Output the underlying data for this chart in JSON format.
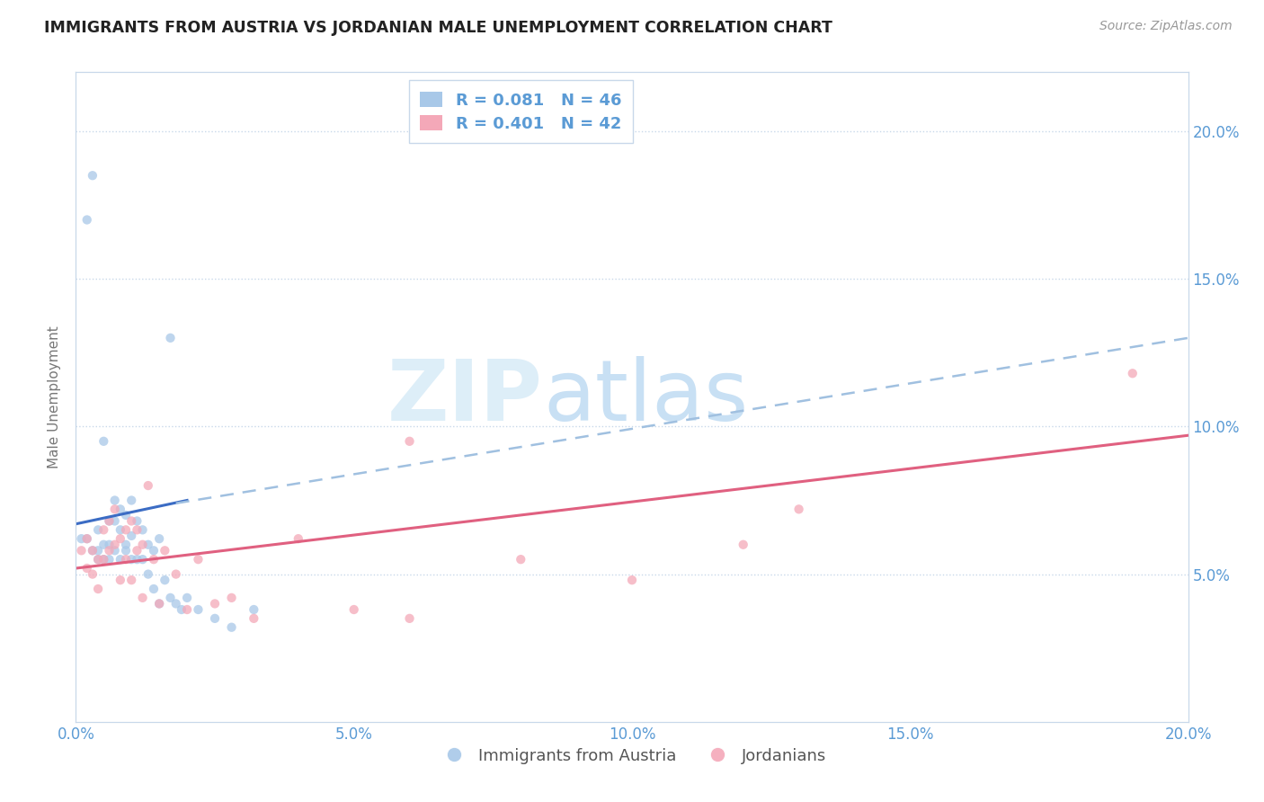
{
  "title": "IMMIGRANTS FROM AUSTRIA VS JORDANIAN MALE UNEMPLOYMENT CORRELATION CHART",
  "source": "Source: ZipAtlas.com",
  "ylabel": "Male Unemployment",
  "legend_labels": [
    "Immigrants from Austria",
    "Jordanians"
  ],
  "legend_r_n": [
    {
      "r": "0.081",
      "n": "46",
      "color": "#a8c8e8"
    },
    {
      "r": "0.401",
      "n": "42",
      "color": "#f4a8b8"
    }
  ],
  "xlim": [
    0.0,
    0.2
  ],
  "ylim": [
    0.0,
    0.22
  ],
  "yticks": [
    0.05,
    0.1,
    0.15,
    0.2
  ],
  "ytick_labels": [
    "5.0%",
    "10.0%",
    "15.0%",
    "20.0%"
  ],
  "xticks": [
    0.0,
    0.05,
    0.1,
    0.15,
    0.2
  ],
  "xtick_labels": [
    "0.0%",
    "5.0%",
    "10.0%",
    "15.0%",
    "20.0%"
  ],
  "tick_color": "#5b9bd5",
  "grid_color": "#c8d8ea",
  "background_color": "#ffffff",
  "watermark_zip": "ZIP",
  "watermark_atlas": "atlas",
  "austria_scatter": {
    "x": [
      0.001,
      0.002,
      0.002,
      0.003,
      0.003,
      0.004,
      0.004,
      0.004,
      0.005,
      0.005,
      0.005,
      0.006,
      0.006,
      0.006,
      0.007,
      0.007,
      0.007,
      0.008,
      0.008,
      0.008,
      0.009,
      0.009,
      0.009,
      0.01,
      0.01,
      0.01,
      0.011,
      0.011,
      0.012,
      0.012,
      0.013,
      0.013,
      0.014,
      0.014,
      0.015,
      0.015,
      0.016,
      0.017,
      0.018,
      0.019,
      0.02,
      0.022,
      0.025,
      0.028,
      0.032,
      0.017
    ],
    "y": [
      0.062,
      0.17,
      0.062,
      0.185,
      0.058,
      0.065,
      0.058,
      0.055,
      0.095,
      0.06,
      0.055,
      0.068,
      0.06,
      0.055,
      0.075,
      0.068,
      0.058,
      0.072,
      0.065,
      0.055,
      0.07,
      0.06,
      0.058,
      0.075,
      0.063,
      0.055,
      0.068,
      0.055,
      0.065,
      0.055,
      0.06,
      0.05,
      0.058,
      0.045,
      0.062,
      0.04,
      0.048,
      0.042,
      0.04,
      0.038,
      0.042,
      0.038,
      0.035,
      0.032,
      0.038,
      0.13
    ],
    "color": "#a8c8e8",
    "alpha": 0.75,
    "size": 55
  },
  "jordan_scatter": {
    "x": [
      0.001,
      0.002,
      0.002,
      0.003,
      0.003,
      0.004,
      0.004,
      0.005,
      0.005,
      0.006,
      0.006,
      0.007,
      0.007,
      0.008,
      0.008,
      0.009,
      0.009,
      0.01,
      0.01,
      0.011,
      0.011,
      0.012,
      0.012,
      0.013,
      0.014,
      0.015,
      0.016,
      0.018,
      0.02,
      0.022,
      0.025,
      0.028,
      0.032,
      0.04,
      0.05,
      0.06,
      0.08,
      0.1,
      0.12,
      0.19,
      0.06,
      0.13
    ],
    "y": [
      0.058,
      0.062,
      0.052,
      0.058,
      0.05,
      0.055,
      0.045,
      0.065,
      0.055,
      0.068,
      0.058,
      0.072,
      0.06,
      0.062,
      0.048,
      0.055,
      0.065,
      0.068,
      0.048,
      0.065,
      0.058,
      0.06,
      0.042,
      0.08,
      0.055,
      0.04,
      0.058,
      0.05,
      0.038,
      0.055,
      0.04,
      0.042,
      0.035,
      0.062,
      0.038,
      0.035,
      0.055,
      0.048,
      0.06,
      0.118,
      0.095,
      0.072
    ],
    "color": "#f4a8b8",
    "alpha": 0.75,
    "size": 55
  },
  "austria_trend_solid": {
    "x_start": 0.0,
    "x_end": 0.02,
    "y_start": 0.067,
    "y_end": 0.075,
    "color": "#3b6cc4",
    "linewidth": 2.2
  },
  "austria_trend_dashed": {
    "x_start": 0.018,
    "x_end": 0.2,
    "y_start": 0.074,
    "y_end": 0.13,
    "color": "#a0c0e0",
    "linewidth": 1.8
  },
  "jordan_trend_solid": {
    "x_start": 0.0,
    "x_end": 0.2,
    "y_start": 0.052,
    "y_end": 0.097,
    "color": "#e06080",
    "linewidth": 2.2
  }
}
